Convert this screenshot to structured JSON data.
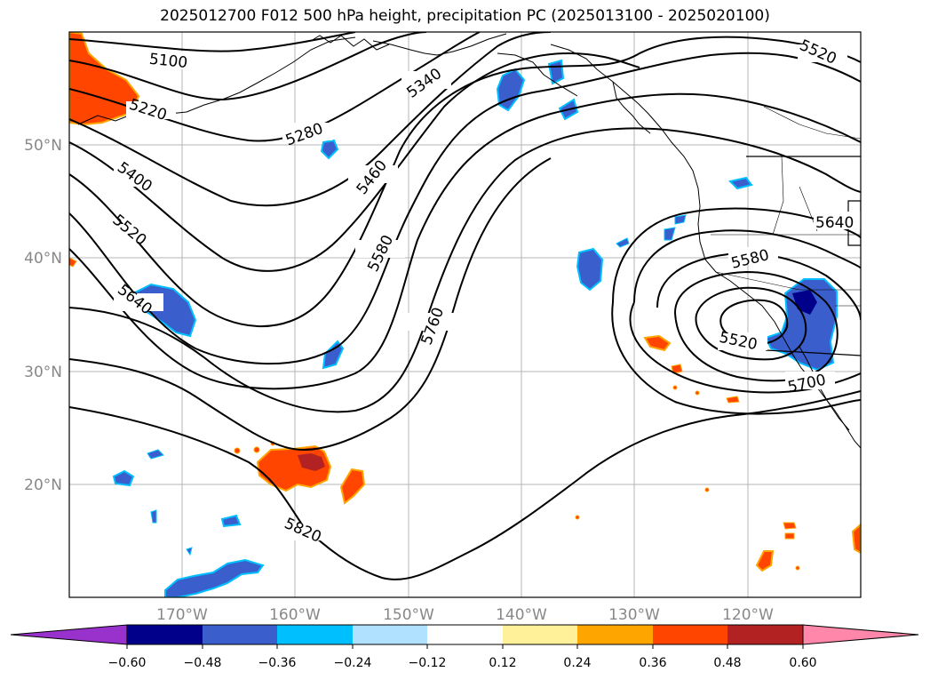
{
  "title": "2025012700 F012 500 hPa height, precipitation PC (2025013100 - 2025020100)",
  "latitude_labels": [
    "50°N",
    "40°N",
    "30°N",
    "20°N"
  ],
  "longitude_labels": [
    "170°W",
    "160°W",
    "150°W",
    "140°W",
    "130°W",
    "120°W"
  ],
  "contour_labels": [
    "5100",
    "5220",
    "5280",
    "5340",
    "5400",
    "5460",
    "5520",
    "5580",
    "5640",
    "5760",
    "5820",
    "5520",
    "5580",
    "5640",
    "5700",
    "5520"
  ],
  "colorbar": {
    "ticks": [
      "−0.60",
      "−0.48",
      "−0.36",
      "−0.24",
      "−0.12",
      "0.12",
      "0.24",
      "0.36",
      "0.48",
      "0.60"
    ],
    "colors": [
      "#9932cc",
      "#00008b",
      "#3a5fcd",
      "#00bfff",
      "#b0e2ff",
      "#ffffff",
      "#fff09a",
      "#ffa500",
      "#ff4500",
      "#b22222",
      "#ff88aa"
    ]
  }
}
